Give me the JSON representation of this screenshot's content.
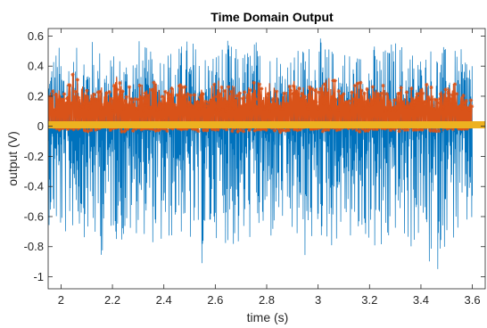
{
  "chart_data": {
    "type": "line",
    "title": "Time Domain Output",
    "xlabel": "time (s)",
    "ylabel": "output (V)",
    "xlim": [
      1.95,
      3.65
    ],
    "ylim": [
      -1.08,
      0.65
    ],
    "xticks": [
      2,
      2.2,
      2.4,
      2.6,
      2.8,
      3,
      3.2,
      3.4,
      3.6
    ],
    "xtick_labels": [
      "2",
      "2.2",
      "2.4",
      "2.6",
      "2.8",
      "3",
      "3.2",
      "3.4",
      "3.6"
    ],
    "yticks": [
      0.6,
      0.4,
      0.2,
      0,
      -0.2,
      -0.4,
      -0.6,
      -0.8,
      -1
    ],
    "ytick_labels": [
      "0.6",
      "0.4",
      "0.2",
      "0",
      "-0.2",
      "-0.4",
      "-0.6",
      "-0.8",
      "-1"
    ],
    "grid": false,
    "series": [
      {
        "color": "#0072BD",
        "style": "line",
        "x_range": [
          1.95,
          3.6
        ],
        "envelope_max": [
          0.52,
          0.55,
          0.5,
          0.62,
          0.55,
          0.48,
          0.52,
          0.6,
          0.5,
          0.57,
          0.53,
          0.62,
          0.5,
          0.55,
          0.58,
          0.5,
          0.6,
          0.52,
          0.55,
          0.48,
          0.57,
          0.6,
          0.53,
          0.55,
          0.5,
          0.58,
          0.52,
          0.6,
          0.55,
          0.5,
          0.57,
          0.53,
          0.5,
          0.6
        ],
        "envelope_min": [
          -0.65,
          -0.8,
          -0.7,
          -0.75,
          -0.9,
          -0.72,
          -0.85,
          -0.7,
          -0.78,
          -0.88,
          -0.7,
          -0.82,
          -0.95,
          -0.74,
          -0.8,
          -0.9,
          -0.72,
          -0.86,
          -0.7,
          -0.8,
          -0.92,
          -0.75,
          -0.84,
          -0.7,
          -0.88,
          -0.78,
          -1.0,
          -0.72,
          -0.85,
          -0.8,
          -1.08,
          -0.75,
          -0.82,
          -0.7
        ]
      },
      {
        "color": "#D95319",
        "style": "line+marker",
        "marker": "*",
        "x_range": [
          1.95,
          3.6
        ],
        "envelope_max": [
          0.25,
          0.28,
          0.48,
          0.3,
          0.25,
          0.38,
          0.3,
          0.28,
          0.35,
          0.27,
          0.32,
          0.3,
          0.26,
          0.34,
          0.3,
          0.28,
          0.36,
          0.3,
          0.27,
          0.33,
          0.3,
          0.28,
          0.35,
          0.26,
          0.31,
          0.29,
          0.34,
          0.28,
          0.3,
          0.32,
          0.27,
          0.36,
          0.3,
          0.22
        ],
        "envelope_min": [
          -0.02,
          -0.03,
          -0.03,
          -0.04,
          -0.03,
          -0.03,
          -0.04,
          -0.03,
          -0.03,
          -0.04,
          -0.03,
          -0.03,
          -0.04,
          -0.03,
          -0.03,
          -0.04,
          -0.03,
          -0.03,
          -0.04,
          -0.03,
          -0.03,
          -0.04,
          -0.03,
          -0.03,
          -0.04,
          -0.03,
          -0.03,
          -0.04,
          -0.03,
          -0.03,
          -0.04,
          -0.03,
          -0.03,
          -0.03
        ]
      },
      {
        "color": "#EDB120",
        "style": "line+marker",
        "x_range": [
          1.95,
          3.65
        ],
        "y_constant": 0.01
      }
    ]
  }
}
